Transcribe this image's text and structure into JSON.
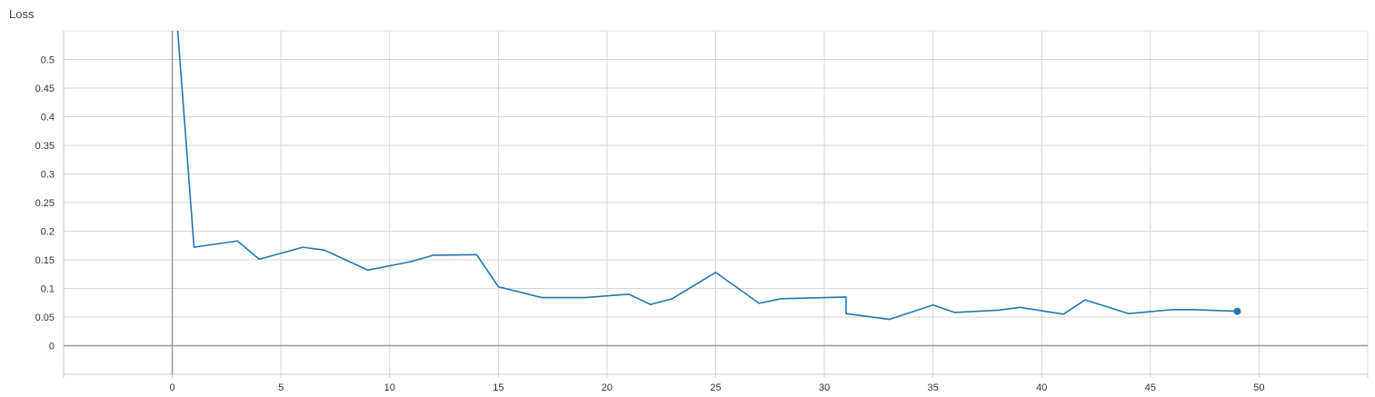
{
  "chart_data": {
    "type": "line",
    "title": "Loss",
    "xlabel": "",
    "ylabel": "",
    "xlim": [
      -5,
      55
    ],
    "ylim": [
      -0.05,
      0.55
    ],
    "xticks": [
      0,
      5,
      10,
      15,
      20,
      25,
      30,
      35,
      40,
      45,
      50
    ],
    "xtick_labels": [
      "0",
      "5",
      "10",
      "15",
      "20",
      "25",
      "30",
      "35",
      "40",
      "45",
      "50"
    ],
    "yticks": [
      0,
      0.05,
      0.1,
      0.15,
      0.2,
      0.25,
      0.3,
      0.35,
      0.4,
      0.45,
      0.5
    ],
    "ytick_labels": [
      "0",
      "0.05",
      "0.1",
      "0.15",
      "0.2",
      "0.25",
      "0.3",
      "0.35",
      "0.4",
      "0.45",
      "0.5"
    ],
    "grid": true,
    "color": "#1f77b4",
    "series": [
      {
        "x": [
          0.25,
          1,
          3,
          4,
          6,
          7,
          9,
          11,
          12,
          14,
          15,
          17,
          19,
          21,
          22,
          23,
          25,
          27,
          28,
          31,
          31,
          33,
          35,
          36,
          38,
          39,
          41,
          42,
          44,
          46,
          47,
          49
        ],
        "y": [
          0.55,
          0.172,
          0.183,
          0.151,
          0.172,
          0.167,
          0.132,
          0.147,
          0.158,
          0.159,
          0.103,
          0.084,
          0.084,
          0.09,
          0.072,
          0.082,
          0.128,
          0.074,
          0.082,
          0.085,
          0.056,
          0.046,
          0.071,
          0.058,
          0.062,
          0.067,
          0.055,
          0.08,
          0.056,
          0.063,
          0.063,
          0.06
        ]
      }
    ],
    "last_point_marker": true
  }
}
